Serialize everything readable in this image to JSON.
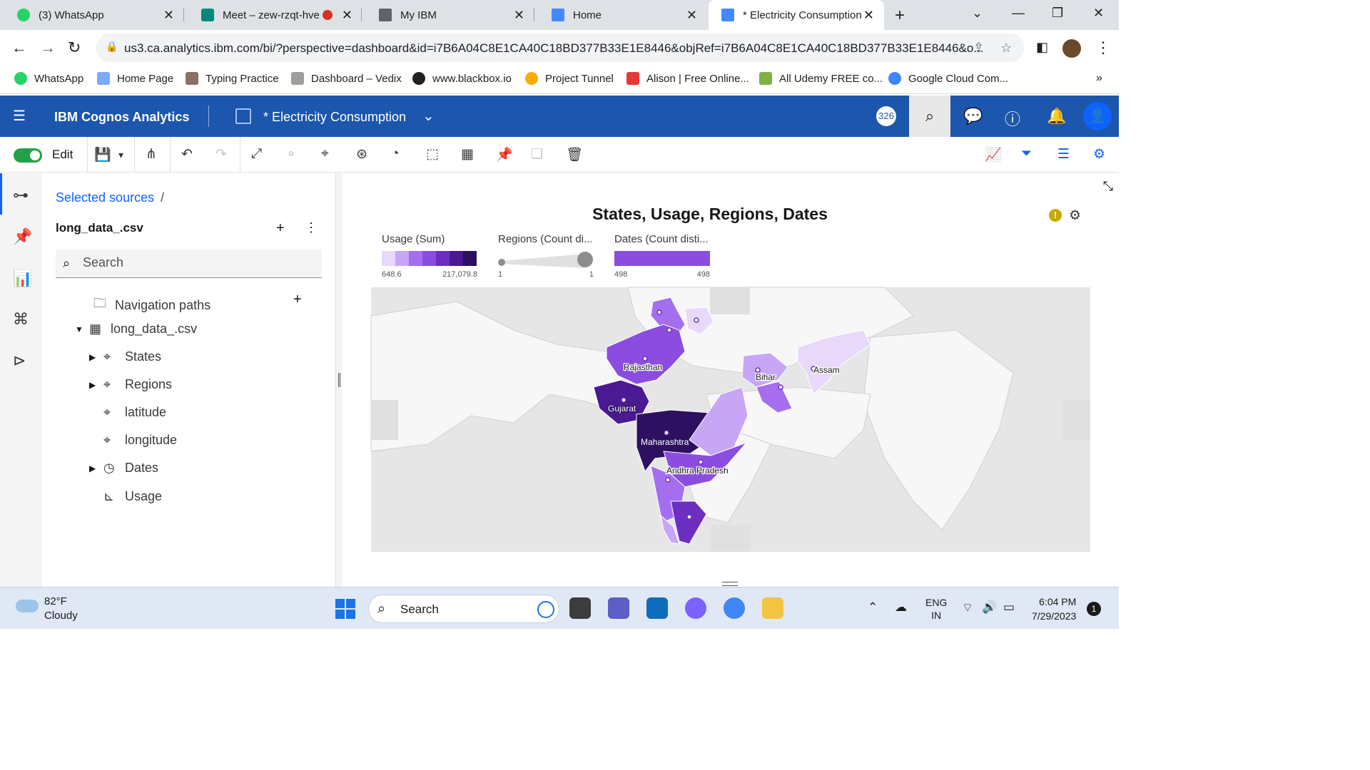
{
  "browser": {
    "tabs": [
      {
        "title": "(3) WhatsApp",
        "color": "#25d366"
      },
      {
        "title": "Meet – zew-rzqt-hve",
        "color": "#00897b"
      },
      {
        "title": "My IBM",
        "color": "#5f6368"
      },
      {
        "title": "Home",
        "color": "#4589ff"
      },
      {
        "title": "* Electricity Consumption",
        "color": "#4589ff"
      }
    ],
    "url": "us3.ca.analytics.ibm.com/bi/?perspective=dashboard&id=i7B6A04C8E1CA40C18BD377B33E1E8446&objRef=i7B6A04C8E1CA40C18BD377B33E1E8446&o...",
    "bookmarks": [
      {
        "label": "WhatsApp",
        "color": "#25d366"
      },
      {
        "label": "Home Page",
        "color": "#7baaf7"
      },
      {
        "label": "Typing Practice",
        "color": "#8d6e63"
      },
      {
        "label": "Dashboard – Vedix",
        "color": "#9e9e9e"
      },
      {
        "label": "www.blackbox.io",
        "color": "#212121"
      },
      {
        "label": "Project Tunnel",
        "color": "#f9ab00"
      },
      {
        "label": "Alison | Free Online...",
        "color": "#e53935"
      },
      {
        "label": "All Udemy FREE co...",
        "color": "#7cb342"
      },
      {
        "label": "Google Cloud Com...",
        "color": "#4285f4"
      }
    ]
  },
  "app": {
    "brand": "IBM Cognos Analytics",
    "document_title": "* Electricity Consumption",
    "badge_count": "326",
    "edit_label": "Edit"
  },
  "sources": {
    "breadcrumb": "Selected sources",
    "breadcrumb_sep": "/",
    "source_name": "long_data_.csv",
    "search_placeholder": "Search",
    "tree": {
      "navigation_paths": "Navigation paths",
      "table": "long_data_.csv",
      "states": "States",
      "regions": "Regions",
      "latitude": "latitude",
      "longitude": "longitude",
      "dates": "Dates",
      "usage": "Usage"
    }
  },
  "visualization": {
    "title": "States, Usage, Regions, Dates",
    "legend": {
      "usage": {
        "title": "Usage (Sum)",
        "min": "648.6",
        "max": "217,079.8",
        "ramp": [
          "#e8d8fa",
          "#c7a6f5",
          "#a56eef",
          "#8a4de0",
          "#6c2fc2",
          "#4b1991",
          "#2d1160"
        ]
      },
      "regions": {
        "title": "Regions (Count di...",
        "min": "1",
        "max": "1"
      },
      "dates": {
        "title": "Dates (Count disti...",
        "min": "498",
        "max": "498",
        "color": "#8a4de0"
      }
    },
    "state_labels": {
      "rajasthan": "Rajasthan",
      "gujarat": "Gujarat",
      "maharashtra": "Maharashtra",
      "andhra": "Andhra Pradesh",
      "bihar": "Bihar",
      "assam": "Assam"
    }
  },
  "taskbar": {
    "temperature": "82°F",
    "condition": "Cloudy",
    "search_label": "Search",
    "lang_top": "ENG",
    "lang_bottom": "IN",
    "time": "6:04 PM",
    "date": "7/29/2023",
    "notifications": "1"
  }
}
